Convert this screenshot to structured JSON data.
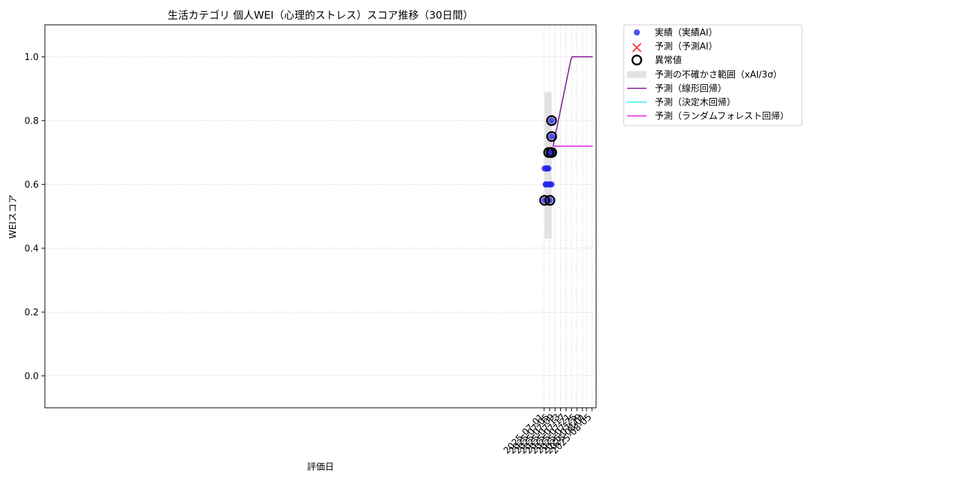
{
  "chart_data": {
    "type": "scatter",
    "title": "生活カテゴリ 個人WEI（心理的ストレス）スコア推移（30日間）",
    "xlabel": "評価日",
    "ylabel": "WEIスコア",
    "xlim": [
      "2024-06-30T16:00",
      "2025-08-08T00:00"
    ],
    "ylim": [
      -0.1,
      1.1
    ],
    "xticks": [
      "2025-07-01",
      "2025-07-05",
      "2025-07-09",
      "2025-07-13",
      "2025-07-17",
      "2025-07-21",
      "2025-07-25",
      "2025-07-29",
      "2025-08-01",
      "2025-08-05"
    ],
    "yticks": [
      "0.0",
      "0.2",
      "0.4",
      "0.6",
      "0.8",
      "1.0"
    ],
    "grid": true,
    "legend_position": "outside-top-right",
    "colors": {
      "actual": "#2525ee",
      "predicted": "#ff4040",
      "uncertainty": "#d9d9d9",
      "linear": "#8e2f9e",
      "tree": "#3ff7f7",
      "forest": "#ee3bee"
    },
    "series": [
      {
        "name": "実績（実績AI）",
        "kind": "scatter",
        "points": [
          {
            "x": "2025-07-01T08:00",
            "y": 0.55
          },
          {
            "x": "2025-07-01T10:00",
            "y": 0.65
          },
          {
            "x": "2025-07-02T03:00",
            "y": 0.6
          },
          {
            "x": "2025-07-02T10:00",
            "y": 0.6
          },
          {
            "x": "2025-07-02T10:00",
            "y": 0.65
          },
          {
            "x": "2025-07-03T01:00",
            "y": 0.6
          },
          {
            "x": "2025-07-03T07:00",
            "y": 0.65
          },
          {
            "x": "2025-07-03T08:00",
            "y": 0.65
          },
          {
            "x": "2025-07-04T02:00",
            "y": 0.65
          },
          {
            "x": "2025-07-04T07:00",
            "y": 0.7
          },
          {
            "x": "2025-07-05T00:00",
            "y": 0.6
          },
          {
            "x": "2025-07-05T05:00",
            "y": 0.55
          },
          {
            "x": "2025-07-05T08:00",
            "y": 0.6
          },
          {
            "x": "2025-07-06T00:00",
            "y": 0.7
          },
          {
            "x": "2025-07-06T08:00",
            "y": 0.6
          },
          {
            "x": "2025-07-06T10:00",
            "y": 0.8
          },
          {
            "x": "2025-07-06T12:00",
            "y": 0.75
          },
          {
            "x": "2025-07-06T13:00",
            "y": 0.7
          }
        ]
      },
      {
        "name": "予測（予測AI）",
        "kind": "scatter-x",
        "points": []
      },
      {
        "name": "異常値",
        "kind": "ring",
        "points": [
          {
            "x": "2025-07-01T08:00",
            "y": 0.55
          },
          {
            "x": "2025-07-04T07:00",
            "y": 0.7
          },
          {
            "x": "2025-07-05T05:00",
            "y": 0.55
          },
          {
            "x": "2025-07-06T00:00",
            "y": 0.7
          },
          {
            "x": "2025-07-06T10:00",
            "y": 0.8
          },
          {
            "x": "2025-07-06T12:00",
            "y": 0.75
          },
          {
            "x": "2025-07-06T13:00",
            "y": 0.7
          }
        ]
      },
      {
        "name": "予測の不確かさ範囲（xAI/3σ）",
        "kind": "band",
        "x_start": "2025-07-01T08:00",
        "x_end": "2025-07-06T13:00",
        "y_low": 0.43,
        "y_high": 0.89
      },
      {
        "name": "予測（線形回帰）",
        "kind": "line",
        "points": [
          {
            "x": "2025-07-07T12:00",
            "y": 0.72
          },
          {
            "x": "2025-07-20T12:00",
            "y": 0.99
          },
          {
            "x": "2025-07-21T12:00",
            "y": 1.0
          },
          {
            "x": "2025-08-05T12:00",
            "y": 1.0
          }
        ]
      },
      {
        "name": "予測（決定木回帰）",
        "kind": "line",
        "points": [
          {
            "x": "2025-07-07T12:00",
            "y": 0.72
          },
          {
            "x": "2025-08-05T12:00",
            "y": 0.72
          }
        ]
      },
      {
        "name": "予測（ランダムフォレスト回帰）",
        "kind": "line",
        "points": [
          {
            "x": "2025-07-07T12:00",
            "y": 0.72
          },
          {
            "x": "2025-08-05T12:00",
            "y": 0.72
          }
        ]
      }
    ]
  }
}
